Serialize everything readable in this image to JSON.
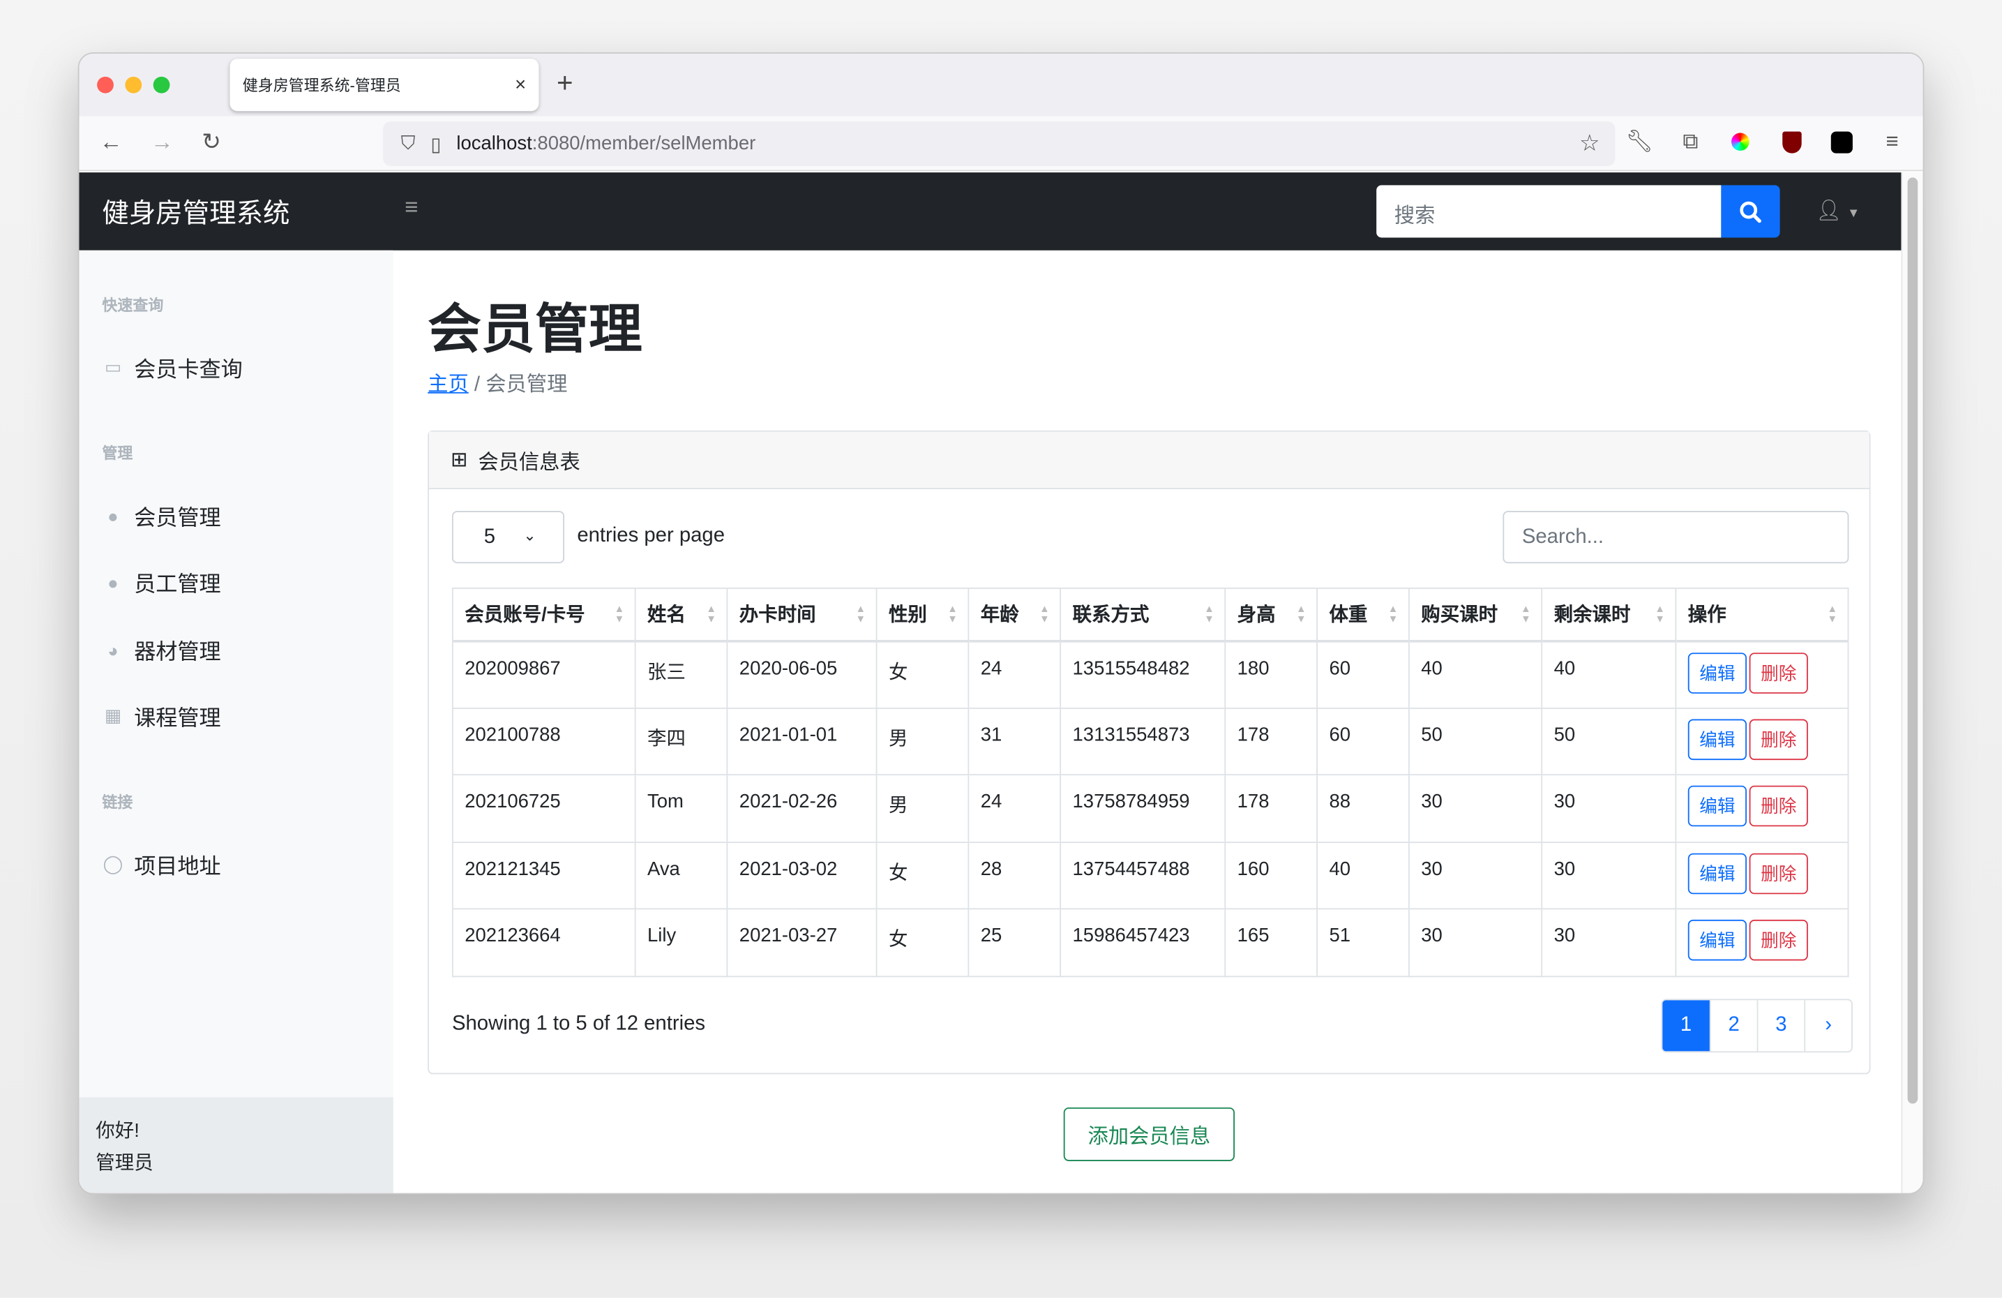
{
  "browser": {
    "tab_title": "健身房管理系统-管理员",
    "url_host": "localhost",
    "url_path": ":8080/member/selMember"
  },
  "app": {
    "brand": "健身房管理系统",
    "search_placeholder": "搜索"
  },
  "sidebar": {
    "sections": [
      {
        "heading": "快速查询"
      },
      {
        "heading": "管理"
      },
      {
        "heading": "链接"
      }
    ],
    "items": [
      {
        "label": "会员卡查询",
        "icon": "id-card-icon"
      },
      {
        "label": "会员管理",
        "icon": "user-icon"
      },
      {
        "label": "员工管理",
        "icon": "user-tie-icon"
      },
      {
        "label": "器材管理",
        "icon": "table-tennis-icon"
      },
      {
        "label": "课程管理",
        "icon": "calendar-icon"
      },
      {
        "label": "项目地址",
        "icon": "github-icon"
      }
    ],
    "footer": {
      "greeting": "你好!",
      "role": "管理员"
    }
  },
  "page": {
    "title": "会员管理",
    "breadcrumb": {
      "home": "主页",
      "current": "会员管理"
    }
  },
  "card": {
    "title": "会员信息表",
    "per_page": "5",
    "per_page_label": "entries per page",
    "search_placeholder": "Search...",
    "columns": [
      "会员账号/卡号",
      "姓名",
      "办卡时间",
      "性别",
      "年龄",
      "联系方式",
      "身高",
      "体重",
      "购买课时",
      "剩余课时",
      "操作"
    ],
    "rows": [
      [
        "202009867",
        "张三",
        "2020-06-05",
        "女",
        "24",
        "13515548482",
        "180",
        "60",
        "40",
        "40"
      ],
      [
        "202100788",
        "李四",
        "2021-01-01",
        "男",
        "31",
        "13131554873",
        "178",
        "60",
        "50",
        "50"
      ],
      [
        "202106725",
        "Tom",
        "2021-02-26",
        "男",
        "24",
        "13758784959",
        "178",
        "88",
        "30",
        "30"
      ],
      [
        "202121345",
        "Ava",
        "2021-03-02",
        "女",
        "28",
        "13754457488",
        "160",
        "40",
        "30",
        "30"
      ],
      [
        "202123664",
        "Lily",
        "2021-03-27",
        "女",
        "25",
        "15986457423",
        "165",
        "51",
        "30",
        "30"
      ]
    ],
    "edit_label": "编辑",
    "delete_label": "删除",
    "showing": "Showing 1 to 5 of 12 entries",
    "pages": [
      "1",
      "2",
      "3",
      "›"
    ]
  },
  "add_button": "添加会员信息",
  "colors": {
    "primary": "#0d6efd",
    "danger": "#dc3545",
    "success": "#198754",
    "navbar": "#212529"
  }
}
